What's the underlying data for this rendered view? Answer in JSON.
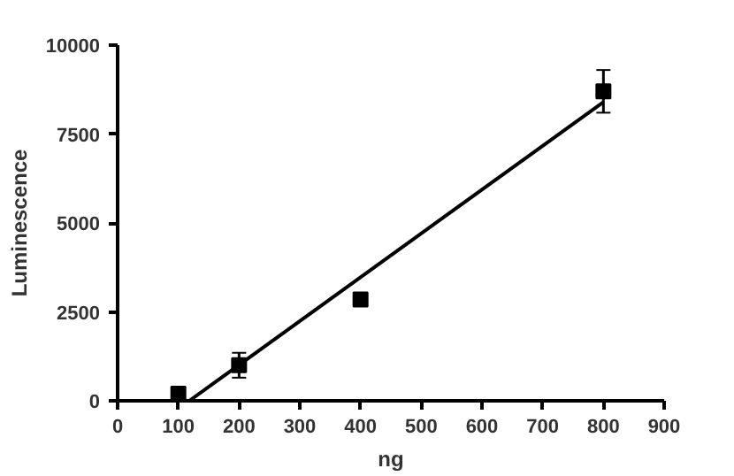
{
  "chart_data": {
    "type": "scatter",
    "xlabel": "ng",
    "ylabel": "Luminescence",
    "xlim": [
      0,
      900
    ],
    "ylim": [
      0,
      10000
    ],
    "xticks": [
      0,
      100,
      200,
      300,
      400,
      500,
      600,
      700,
      800,
      900
    ],
    "yticks": [
      0,
      2500,
      5000,
      7500,
      10000
    ],
    "grid": false,
    "series": [
      {
        "marker": "square",
        "color": "#000000",
        "x": [
          100,
          200,
          400,
          800
        ],
        "values": [
          200,
          1000,
          2850,
          8700
        ],
        "errors": [
          null,
          350,
          null,
          600
        ]
      },
      {
        "type": "line",
        "marker": "none",
        "color": "#000000",
        "x": [
          118,
          800
        ],
        "values": [
          0,
          8400
        ]
      }
    ]
  }
}
